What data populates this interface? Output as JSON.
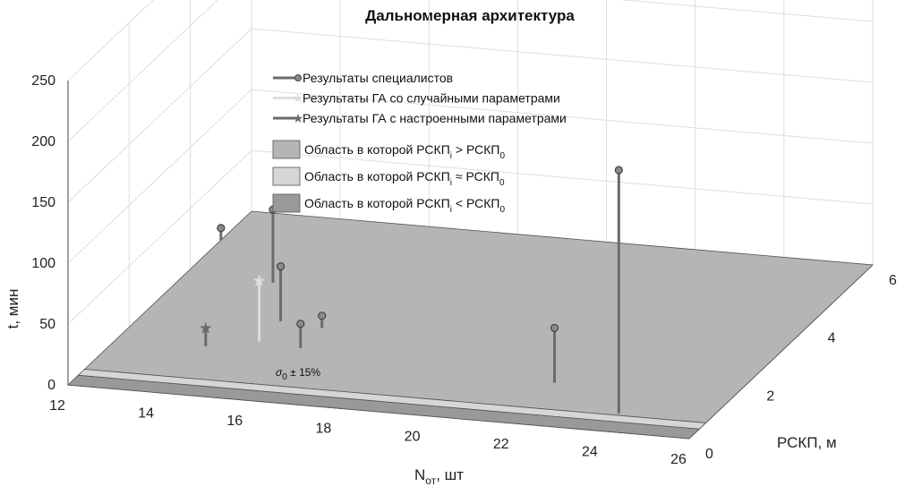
{
  "chart_data": {
    "type": "scatter",
    "subtype": "3d-stem",
    "title": "Дальномерная архитектура",
    "xlabel": "N",
    "xlabel_sub": "от",
    "xlabel_suffix": ", шт",
    "ylabel": "РСКП, м",
    "zlabel": "t, мин",
    "xlim": [
      12,
      26
    ],
    "ylim": [
      0,
      6
    ],
    "zlim": [
      0,
      250
    ],
    "x_ticks": [
      "12",
      "14",
      "16",
      "18",
      "20",
      "22",
      "24",
      "26"
    ],
    "y_ticks": [
      "0",
      "2",
      "4",
      "6"
    ],
    "z_ticks": [
      "0",
      "50",
      "100",
      "150",
      "200",
      "250"
    ],
    "grid": true,
    "legend_position": "top-center",
    "series": [
      {
        "name": "Результаты специалистов",
        "marker": "circle",
        "color": "#6b6b6b",
        "points": [
          {
            "x": 24,
            "y": 0.6,
            "z": 200
          },
          {
            "x": 22,
            "y": 1.4,
            "z": 45
          },
          {
            "x": 16,
            "y": 1.8,
            "z": 20
          },
          {
            "x": 16,
            "y": 2.5,
            "z": 10
          },
          {
            "x": 15,
            "y": 2.6,
            "z": 45
          },
          {
            "x": 14,
            "y": 3.8,
            "z": 60
          },
          {
            "x": 12,
            "y": 5.0,
            "z": 10
          }
        ]
      },
      {
        "name": "Результаты ГА со случайными параметрами",
        "marker": "star",
        "color": "#dddddd",
        "points": [
          {
            "x": 15,
            "y": 1.9,
            "z": 50
          }
        ]
      },
      {
        "name": "Результаты ГА с настроенными параметрами",
        "marker": "star",
        "color": "#6b6b6b",
        "points": [
          {
            "x": 14,
            "y": 1.6,
            "z": 15
          }
        ]
      }
    ],
    "regions": [
      {
        "name_main": "Область в которой РСКП",
        "name_sub_i": "i",
        "relation": ">",
        "name_rhs": "РСКП",
        "name_sub_0": "0",
        "color": "#b5b5b5"
      },
      {
        "name_main": "Область в которой РСКП",
        "name_sub_i": "i",
        "relation": "≈",
        "name_rhs": "РСКП",
        "name_sub_0": "0",
        "color": "#d6d6d6"
      },
      {
        "name_main": "Область в которой РСКП",
        "name_sub_i": "i",
        "relation": "<",
        "name_rhs": "РСКП",
        "name_sub_0": "0",
        "color": "#999999"
      }
    ],
    "annotation": {
      "symbol": "σ",
      "sub": "0",
      "text": "± 15%"
    }
  }
}
